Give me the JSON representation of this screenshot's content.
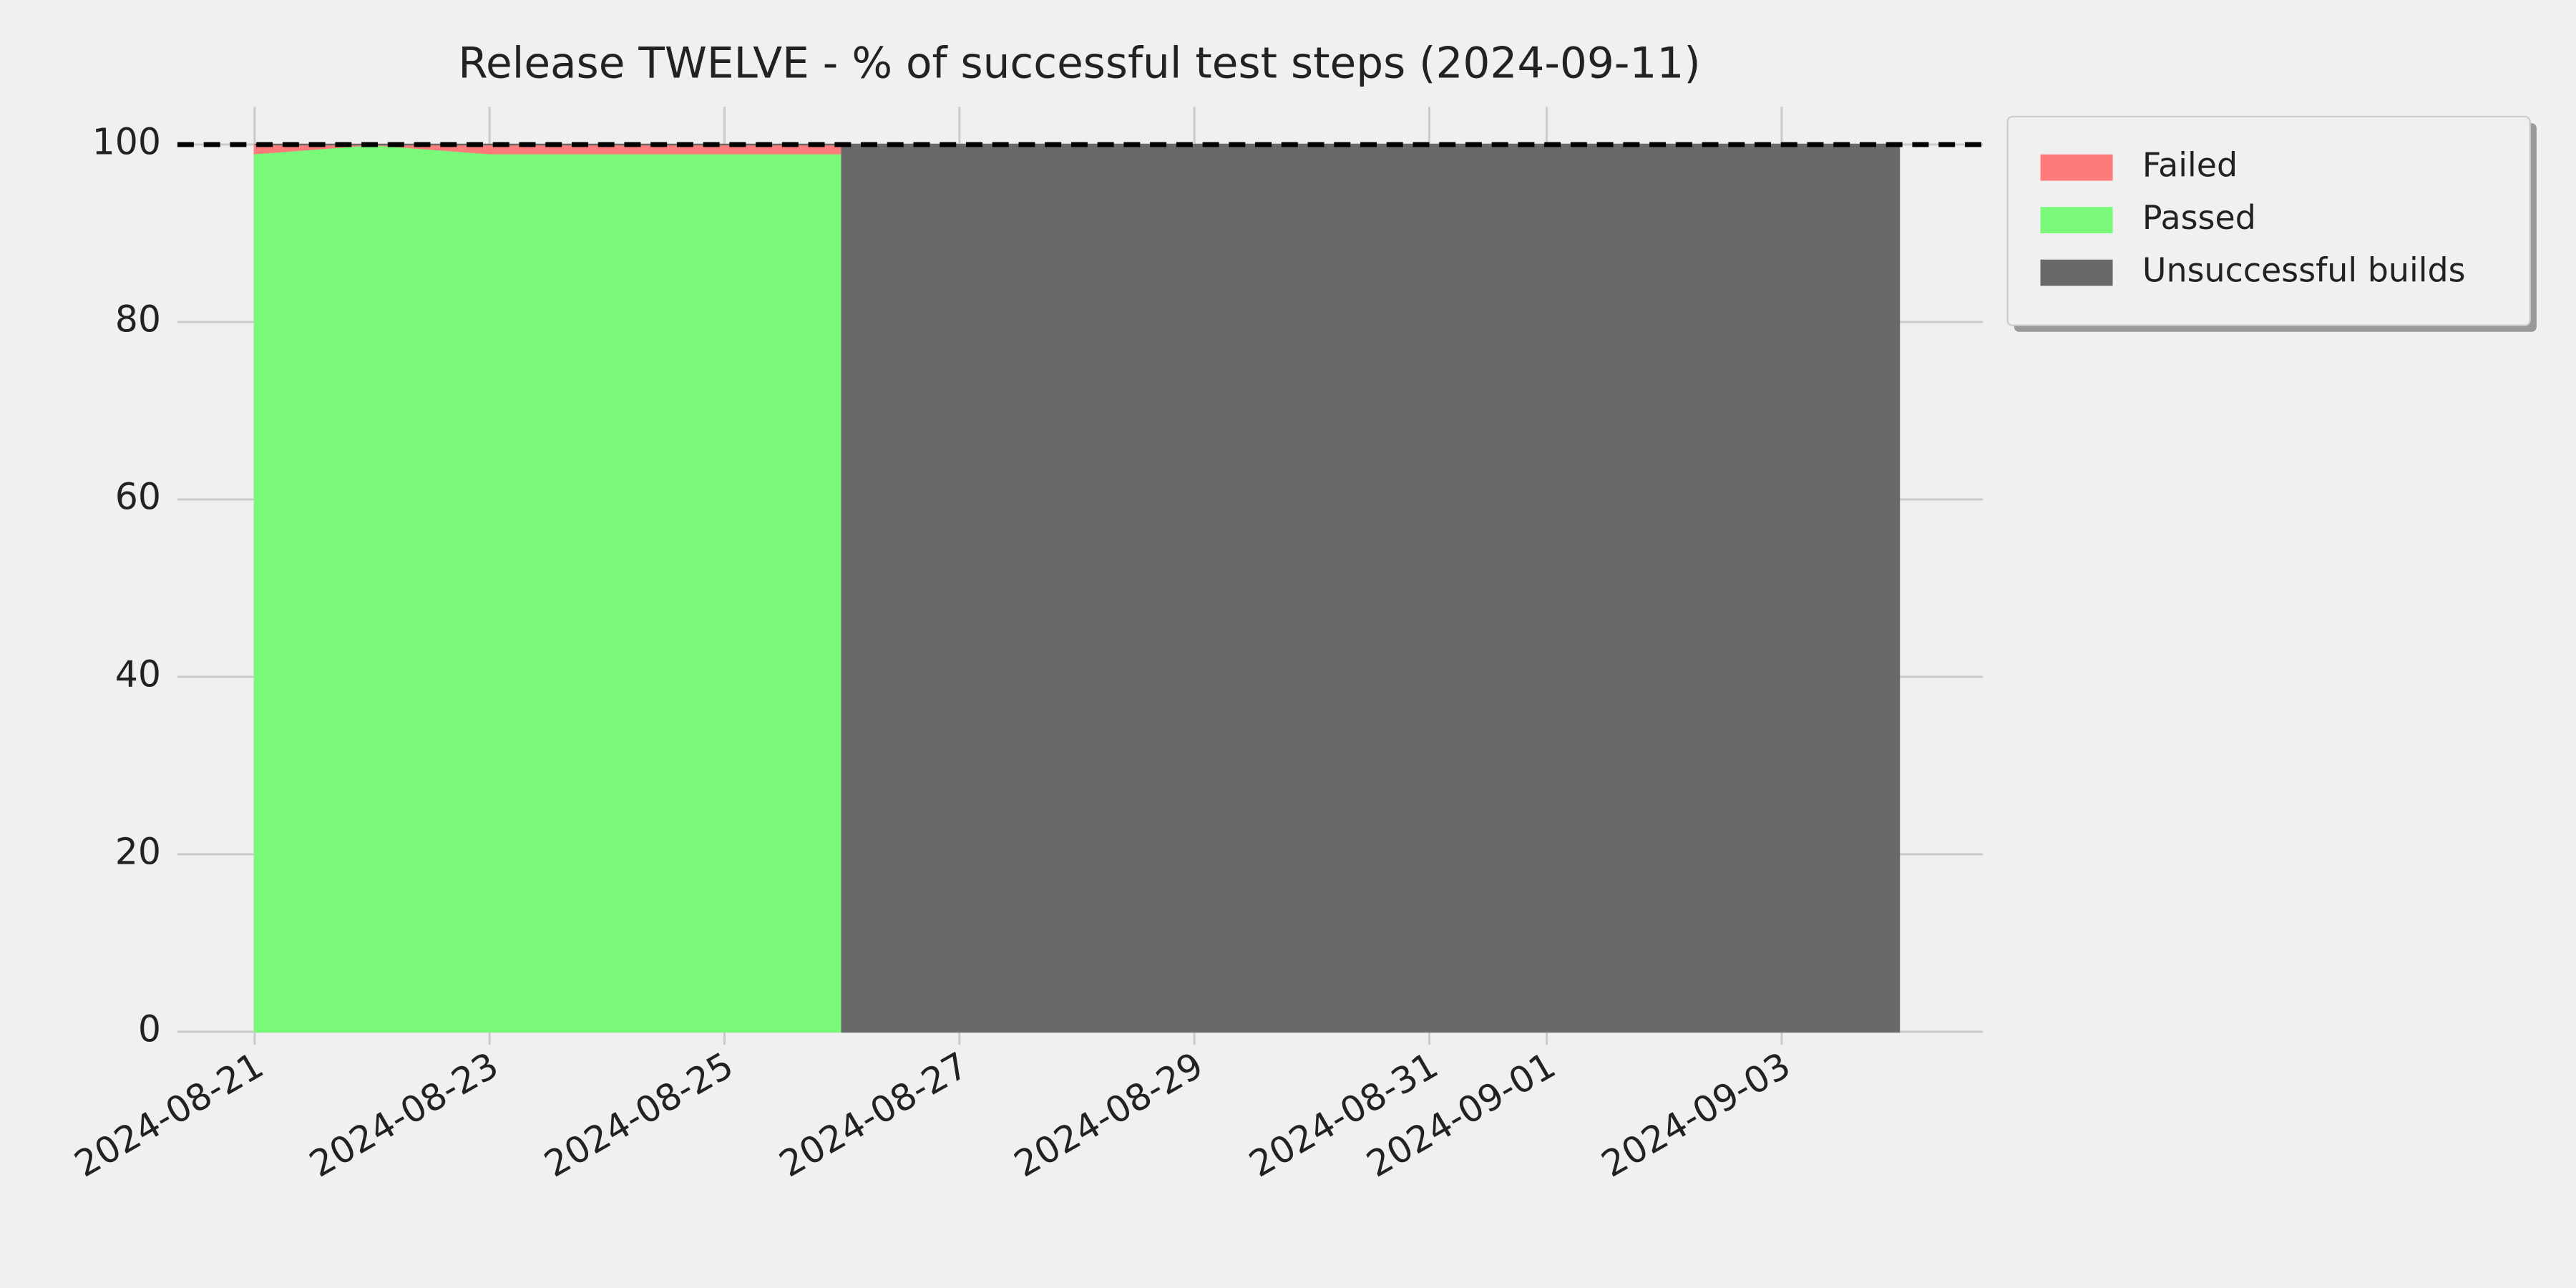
{
  "chart_data": {
    "type": "stacked_area",
    "title": "Release TWELVE - % of successful test steps (2024-09-11)",
    "x": [
      "2024-08-21",
      "2024-08-22",
      "2024-08-23",
      "2024-08-24",
      "2024-08-25",
      "2024-08-26",
      "2024-08-26",
      "2024-09-04"
    ],
    "series": [
      {
        "name": "Passed",
        "color": "#79f879",
        "values": [
          99,
          100,
          99,
          99,
          99,
          99,
          0,
          0
        ]
      },
      {
        "name": "Failed",
        "color": "#ff7b7b",
        "values": [
          1,
          0,
          1,
          1,
          1,
          1,
          0,
          0
        ]
      },
      {
        "name": "Unsuccessful builds",
        "color": "#696969",
        "values": [
          0,
          0,
          0,
          0,
          0,
          0,
          100,
          100
        ]
      }
    ],
    "legend_order": [
      "Failed",
      "Passed",
      "Unsuccessful builds"
    ],
    "reference_line": 100,
    "ylim": [
      0,
      100
    ],
    "yticks": [
      0,
      20,
      40,
      60,
      80,
      100
    ],
    "xticks": [
      "2024-08-21",
      "2024-08-23",
      "2024-08-25",
      "2024-08-27",
      "2024-08-29",
      "2024-08-31",
      "2024-09-01",
      "2024-09-03"
    ],
    "grid": true,
    "legend": "outside upper right"
  }
}
